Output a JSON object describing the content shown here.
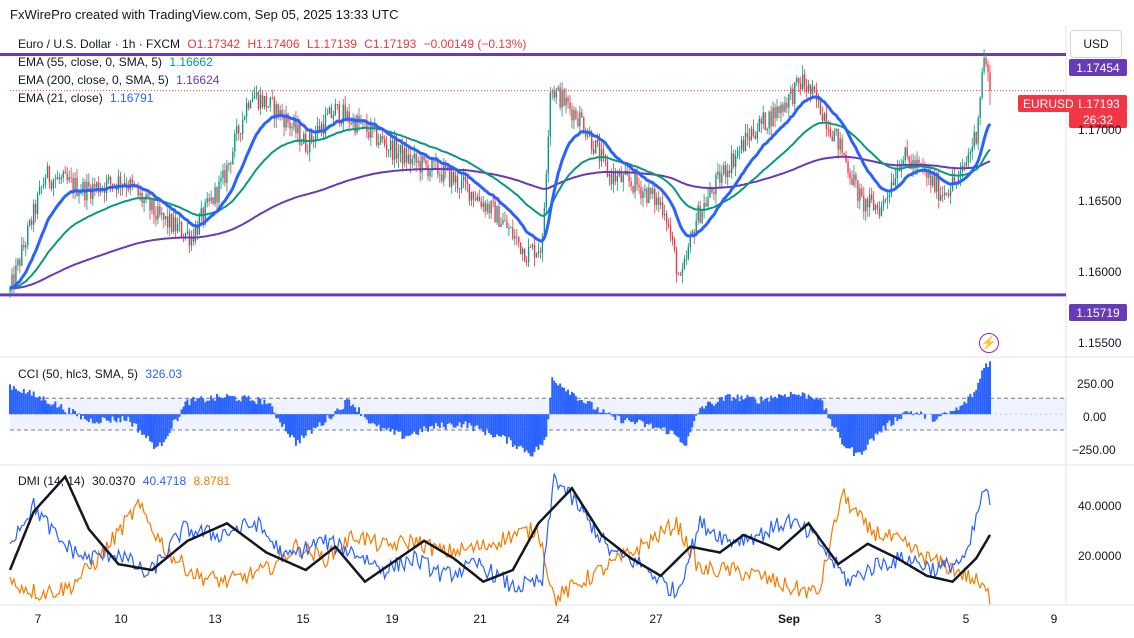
{
  "header": {
    "credit": "FxWirePro created with TradingView.com, Sep 05, 2025 13:33 UTC"
  },
  "currency_button": "USD",
  "legend": {
    "symbol": "Euro / U.S. Dollar · 1h · FXCM",
    "ohlc": {
      "o": "O1.17342",
      "h": "H1.17406",
      "l": "L1.17139",
      "c": "C1.17193",
      "chg": "−0.00149 (−0.13%)"
    },
    "ema55": {
      "label": "EMA (55, close, 0, SMA, 5)",
      "value": "1.16662"
    },
    "ema200": {
      "label": "EMA (200, close, 0, SMA, 5)",
      "value": "1.16624"
    },
    "ema21": {
      "label": "EMA (21, close)",
      "value": "1.16791"
    },
    "cci": {
      "label": "CCI (50, hlc3, SMA, 5)",
      "value": "326.03"
    },
    "dmi": {
      "label": "DMI (14, 14)",
      "adx": "30.0370",
      "plus_di": "40.4718",
      "minus_di": "8.8781"
    }
  },
  "price_labels": {
    "resistance": "1.17454",
    "support": "1.15719",
    "last": "1.17193",
    "countdown": "26:32",
    "symbol_tag": "EURUSD"
  },
  "colors": {
    "up": "#089981",
    "down": "#f23645",
    "ema21": "#2962ff",
    "ema55": "#089981",
    "ema200": "#673ab7",
    "hline": "#673ab7",
    "cci": "#2962ff",
    "adx": "#131722",
    "plus_di": "#2962ff",
    "minus_di": "#f57c00"
  },
  "icons": {
    "flash": "flash-icon"
  },
  "chart_data": {
    "type": "candlestick",
    "symbol": "EURUSD",
    "timeframe": "1h",
    "price_axis": {
      "ticks": [
        "1.17000",
        "1.16500",
        "1.16000",
        "1.15500"
      ],
      "range": [
        1.1527,
        1.1766
      ]
    },
    "time_axis": {
      "ticks": [
        "7",
        "10",
        "13",
        "15",
        "19",
        "21",
        "24",
        "27",
        "Sep",
        "3",
        "5",
        "9"
      ]
    },
    "horizontal_lines": [
      {
        "value": 1.17454
      },
      {
        "value": 1.15719
      }
    ],
    "anchors": [
      {
        "bar": 0,
        "price": 1.1574
      },
      {
        "bar": 18,
        "price": 1.1658
      },
      {
        "bar": 38,
        "price": 1.1648
      },
      {
        "bar": 58,
        "price": 1.1655
      },
      {
        "bar": 75,
        "price": 1.1628
      },
      {
        "bar": 92,
        "price": 1.1614
      },
      {
        "bar": 108,
        "price": 1.1654
      },
      {
        "bar": 122,
        "price": 1.1718
      },
      {
        "bar": 138,
        "price": 1.1702
      },
      {
        "bar": 150,
        "price": 1.1681
      },
      {
        "bar": 165,
        "price": 1.1705
      },
      {
        "bar": 178,
        "price": 1.1694
      },
      {
        "bar": 192,
        "price": 1.1679
      },
      {
        "bar": 204,
        "price": 1.1668
      },
      {
        "bar": 218,
        "price": 1.1661
      },
      {
        "bar": 232,
        "price": 1.1649
      },
      {
        "bar": 248,
        "price": 1.1628
      },
      {
        "bar": 262,
        "price": 1.1602
      },
      {
        "bar": 270,
        "price": 1.1608
      },
      {
        "bar": 274,
        "price": 1.1722
      },
      {
        "bar": 280,
        "price": 1.1713
      },
      {
        "bar": 290,
        "price": 1.1698
      },
      {
        "bar": 304,
        "price": 1.1658
      },
      {
        "bar": 318,
        "price": 1.1651
      },
      {
        "bar": 332,
        "price": 1.1635
      },
      {
        "bar": 340,
        "price": 1.1579
      },
      {
        "bar": 348,
        "price": 1.1627
      },
      {
        "bar": 362,
        "price": 1.1661
      },
      {
        "bar": 376,
        "price": 1.1689
      },
      {
        "bar": 390,
        "price": 1.1706
      },
      {
        "bar": 402,
        "price": 1.1726
      },
      {
        "bar": 412,
        "price": 1.1705
      },
      {
        "bar": 422,
        "price": 1.1676
      },
      {
        "bar": 432,
        "price": 1.1638
      },
      {
        "bar": 442,
        "price": 1.1635
      },
      {
        "bar": 452,
        "price": 1.1672
      },
      {
        "bar": 462,
        "price": 1.1662
      },
      {
        "bar": 472,
        "price": 1.1646
      },
      {
        "bar": 482,
        "price": 1.1656
      },
      {
        "bar": 490,
        "price": 1.1689
      },
      {
        "bar": 494,
        "price": 1.1745
      },
      {
        "bar": 497,
        "price": 1.17193
      }
    ],
    "cci_axis": {
      "ticks": [
        "250.00",
        "0.00",
        "−250.00"
      ],
      "range": [
        -320,
        360
      ],
      "bands": [
        100,
        -100
      ]
    },
    "cci_anchors": [
      {
        "bar": 0,
        "value": 180
      },
      {
        "bar": 20,
        "value": 80
      },
      {
        "bar": 40,
        "value": -40
      },
      {
        "bar": 60,
        "value": -30
      },
      {
        "bar": 75,
        "value": -220
      },
      {
        "bar": 90,
        "value": 80
      },
      {
        "bar": 110,
        "value": 110
      },
      {
        "bar": 130,
        "value": 80
      },
      {
        "bar": 145,
        "value": -180
      },
      {
        "bar": 160,
        "value": -40
      },
      {
        "bar": 172,
        "value": 90
      },
      {
        "bar": 185,
        "value": -80
      },
      {
        "bar": 200,
        "value": -140
      },
      {
        "bar": 215,
        "value": -80
      },
      {
        "bar": 230,
        "value": -60
      },
      {
        "bar": 250,
        "value": -150
      },
      {
        "bar": 265,
        "value": -250
      },
      {
        "bar": 272,
        "value": -160
      },
      {
        "bar": 275,
        "value": 230
      },
      {
        "bar": 290,
        "value": 90
      },
      {
        "bar": 305,
        "value": -20
      },
      {
        "bar": 320,
        "value": -60
      },
      {
        "bar": 335,
        "value": -110
      },
      {
        "bar": 343,
        "value": -190
      },
      {
        "bar": 350,
        "value": 40
      },
      {
        "bar": 365,
        "value": 110
      },
      {
        "bar": 380,
        "value": 90
      },
      {
        "bar": 395,
        "value": 130
      },
      {
        "bar": 410,
        "value": 110
      },
      {
        "bar": 422,
        "value": -180
      },
      {
        "bar": 430,
        "value": -260
      },
      {
        "bar": 440,
        "value": -120
      },
      {
        "bar": 455,
        "value": 20
      },
      {
        "bar": 470,
        "value": -30
      },
      {
        "bar": 482,
        "value": 40
      },
      {
        "bar": 490,
        "value": 150
      },
      {
        "bar": 494,
        "value": 310
      },
      {
        "bar": 497,
        "value": 326
      }
    ],
    "dmi_axis": {
      "ticks": [
        "40.0000",
        "20.0000"
      ],
      "range": [
        6,
        54
      ]
    },
    "adx_anchors": [
      {
        "bar": 0,
        "value": 18
      },
      {
        "bar": 12,
        "value": 38
      },
      {
        "bar": 28,
        "value": 50
      },
      {
        "bar": 40,
        "value": 32
      },
      {
        "bar": 55,
        "value": 20
      },
      {
        "bar": 72,
        "value": 18
      },
      {
        "bar": 90,
        "value": 28
      },
      {
        "bar": 110,
        "value": 34
      },
      {
        "bar": 130,
        "value": 24
      },
      {
        "bar": 150,
        "value": 18
      },
      {
        "bar": 165,
        "value": 26
      },
      {
        "bar": 180,
        "value": 14
      },
      {
        "bar": 195,
        "value": 21
      },
      {
        "bar": 210,
        "value": 28
      },
      {
        "bar": 225,
        "value": 22
      },
      {
        "bar": 240,
        "value": 14
      },
      {
        "bar": 255,
        "value": 18
      },
      {
        "bar": 268,
        "value": 34
      },
      {
        "bar": 285,
        "value": 46
      },
      {
        "bar": 300,
        "value": 30
      },
      {
        "bar": 315,
        "value": 22
      },
      {
        "bar": 330,
        "value": 16
      },
      {
        "bar": 345,
        "value": 26
      },
      {
        "bar": 360,
        "value": 24
      },
      {
        "bar": 372,
        "value": 30
      },
      {
        "bar": 390,
        "value": 25
      },
      {
        "bar": 405,
        "value": 34
      },
      {
        "bar": 420,
        "value": 20
      },
      {
        "bar": 435,
        "value": 27
      },
      {
        "bar": 450,
        "value": 22
      },
      {
        "bar": 465,
        "value": 16
      },
      {
        "bar": 478,
        "value": 14
      },
      {
        "bar": 490,
        "value": 22
      },
      {
        "bar": 497,
        "value": 30.037
      }
    ],
    "plus_di_anchors": [
      {
        "bar": 0,
        "value": 28
      },
      {
        "bar": 12,
        "value": 40
      },
      {
        "bar": 25,
        "value": 28
      },
      {
        "bar": 38,
        "value": 22
      },
      {
        "bar": 55,
        "value": 24
      },
      {
        "bar": 70,
        "value": 16
      },
      {
        "bar": 88,
        "value": 32
      },
      {
        "bar": 105,
        "value": 30
      },
      {
        "bar": 125,
        "value": 34
      },
      {
        "bar": 140,
        "value": 22
      },
      {
        "bar": 158,
        "value": 28
      },
      {
        "bar": 175,
        "value": 24
      },
      {
        "bar": 190,
        "value": 18
      },
      {
        "bar": 205,
        "value": 22
      },
      {
        "bar": 220,
        "value": 16
      },
      {
        "bar": 238,
        "value": 20
      },
      {
        "bar": 255,
        "value": 12
      },
      {
        "bar": 270,
        "value": 14
      },
      {
        "bar": 276,
        "value": 50
      },
      {
        "bar": 290,
        "value": 38
      },
      {
        "bar": 305,
        "value": 24
      },
      {
        "bar": 320,
        "value": 20
      },
      {
        "bar": 338,
        "value": 10
      },
      {
        "bar": 350,
        "value": 34
      },
      {
        "bar": 365,
        "value": 28
      },
      {
        "bar": 380,
        "value": 30
      },
      {
        "bar": 395,
        "value": 35
      },
      {
        "bar": 410,
        "value": 28
      },
      {
        "bar": 425,
        "value": 14
      },
      {
        "bar": 440,
        "value": 20
      },
      {
        "bar": 455,
        "value": 22
      },
      {
        "bar": 470,
        "value": 18
      },
      {
        "bar": 485,
        "value": 22
      },
      {
        "bar": 494,
        "value": 46
      },
      {
        "bar": 497,
        "value": 40.4718
      }
    ],
    "minus_di_anchors": [
      {
        "bar": 0,
        "value": 14
      },
      {
        "bar": 15,
        "value": 10
      },
      {
        "bar": 30,
        "value": 12
      },
      {
        "bar": 45,
        "value": 22
      },
      {
        "bar": 65,
        "value": 40
      },
      {
        "bar": 80,
        "value": 24
      },
      {
        "bar": 95,
        "value": 16
      },
      {
        "bar": 110,
        "value": 14
      },
      {
        "bar": 130,
        "value": 18
      },
      {
        "bar": 145,
        "value": 26
      },
      {
        "bar": 160,
        "value": 22
      },
      {
        "bar": 175,
        "value": 30
      },
      {
        "bar": 190,
        "value": 26
      },
      {
        "bar": 205,
        "value": 28
      },
      {
        "bar": 220,
        "value": 24
      },
      {
        "bar": 240,
        "value": 26
      },
      {
        "bar": 255,
        "value": 30
      },
      {
        "bar": 268,
        "value": 32
      },
      {
        "bar": 276,
        "value": 8
      },
      {
        "bar": 290,
        "value": 14
      },
      {
        "bar": 305,
        "value": 20
      },
      {
        "bar": 320,
        "value": 26
      },
      {
        "bar": 338,
        "value": 34
      },
      {
        "bar": 350,
        "value": 18
      },
      {
        "bar": 365,
        "value": 18
      },
      {
        "bar": 380,
        "value": 16
      },
      {
        "bar": 395,
        "value": 12
      },
      {
        "bar": 410,
        "value": 10
      },
      {
        "bar": 422,
        "value": 44
      },
      {
        "bar": 435,
        "value": 32
      },
      {
        "bar": 450,
        "value": 28
      },
      {
        "bar": 465,
        "value": 22
      },
      {
        "bar": 480,
        "value": 18
      },
      {
        "bar": 490,
        "value": 14
      },
      {
        "bar": 497,
        "value": 8.8781
      }
    ]
  }
}
